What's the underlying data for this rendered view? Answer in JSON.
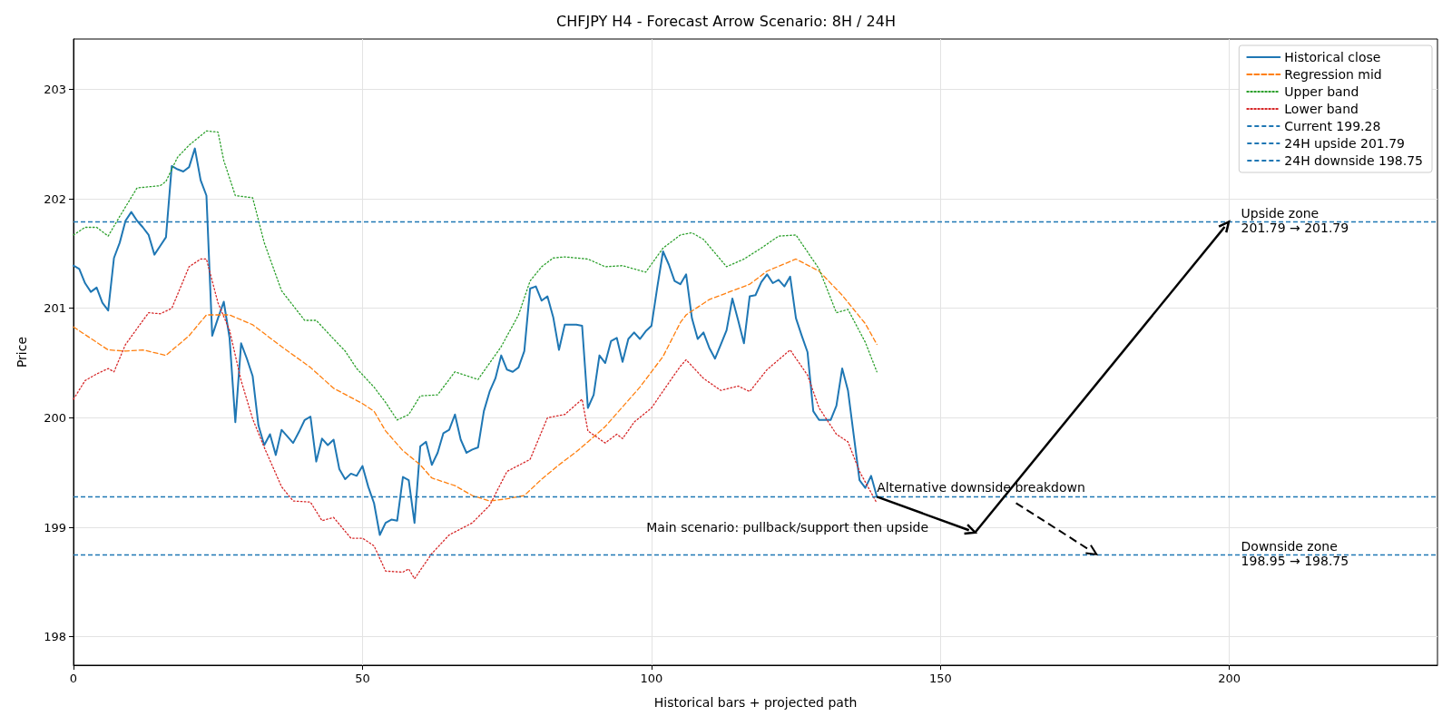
{
  "chart_data": {
    "type": "line",
    "title": "CHFJPY H4 - Forecast Arrow Scenario: 8H / 24H",
    "xlabel": "Historical bars + projected path",
    "ylabel": "Price",
    "xlim": [
      0,
      236
    ],
    "xticks": [
      0,
      50,
      100,
      150,
      200
    ],
    "ylim": [
      197.74,
      203.46
    ],
    "yticks": [
      198,
      199,
      200,
      201,
      202,
      203
    ],
    "grid": true,
    "legend": "top right",
    "marker": "none",
    "x": [
      0,
      1,
      2,
      3,
      4,
      5,
      6,
      7,
      8,
      9,
      10,
      11,
      12,
      13,
      14,
      15,
      16,
      17,
      18,
      19,
      20,
      21,
      22,
      23,
      24,
      25,
      26,
      27,
      28,
      29,
      30,
      31,
      32,
      33,
      34,
      35,
      36,
      37,
      38,
      39,
      40,
      41,
      42,
      43,
      44,
      45,
      46,
      47,
      48,
      49,
      50,
      51,
      52,
      53,
      54,
      55,
      56,
      57,
      58,
      59,
      60,
      61,
      62,
      63,
      64,
      65,
      66,
      67,
      68,
      69,
      70,
      71,
      72,
      73,
      74,
      75,
      76,
      77,
      78,
      79,
      80,
      81,
      82,
      83,
      84,
      85,
      86,
      87,
      88,
      89,
      90,
      91,
      92,
      93,
      94,
      95,
      96,
      97,
      98,
      99,
      100,
      101,
      102,
      103,
      104,
      105,
      106,
      107,
      108,
      109,
      110,
      111,
      112,
      113,
      114,
      115,
      116,
      117,
      118,
      119,
      120,
      121,
      122,
      123,
      124,
      125,
      126,
      127,
      128,
      129,
      130,
      131,
      132,
      133,
      134,
      135,
      136,
      137,
      138,
      139
    ],
    "series": [
      {
        "name": "Historical close",
        "color": "#1f77b4",
        "line_style": "solid",
        "values": [
          201.39,
          201.36,
          201.23,
          201.15,
          201.19,
          201.05,
          200.98,
          201.46,
          201.6,
          201.8,
          201.88,
          201.8,
          201.74,
          201.67,
          201.49,
          201.57,
          201.65,
          202.3,
          202.27,
          202.25,
          202.29,
          202.46,
          202.17,
          202.03,
          200.75,
          200.91,
          201.06,
          200.73,
          199.96,
          200.68,
          200.54,
          200.38,
          199.93,
          199.75,
          199.85,
          199.66,
          199.89,
          199.83,
          199.77,
          199.87,
          199.98,
          200.01,
          199.6,
          199.81,
          199.75,
          199.8,
          199.53,
          199.44,
          199.49,
          199.47,
          199.56,
          199.37,
          199.22,
          198.93,
          199.04,
          199.07,
          199.06,
          199.46,
          199.43,
          199.04,
          199.74,
          199.78,
          199.57,
          199.68,
          199.86,
          199.89,
          200.03,
          199.8,
          199.68,
          199.71,
          199.73,
          200.06,
          200.24,
          200.36,
          200.57,
          200.44,
          200.42,
          200.46,
          200.61,
          201.18,
          201.2,
          201.07,
          201.11,
          200.92,
          200.62,
          200.85,
          200.85,
          200.85,
          200.84,
          200.09,
          200.21,
          200.57,
          200.5,
          200.7,
          200.73,
          200.51,
          200.72,
          200.78,
          200.72,
          200.79,
          200.84,
          201.19,
          201.52,
          201.4,
          201.25,
          201.22,
          201.31,
          200.91,
          200.72,
          200.78,
          200.64,
          200.54,
          200.67,
          200.8,
          201.09,
          200.89,
          200.68,
          201.11,
          201.12,
          201.24,
          201.31,
          201.23,
          201.26,
          201.2,
          201.29,
          200.91,
          200.75,
          200.6,
          200.06,
          199.98,
          199.98,
          199.98,
          200.11,
          200.45,
          200.25,
          199.84,
          199.43,
          199.36,
          199.47,
          199.28
        ]
      },
      {
        "name": "Regression mid",
        "color": "#ff7f0e",
        "line_style": "dashed",
        "x": [
          0,
          6,
          9,
          12,
          16,
          20,
          23,
          27,
          31,
          36,
          41,
          45,
          50,
          52,
          54,
          57,
          60,
          62,
          66,
          69,
          72,
          75,
          78,
          81,
          84,
          87,
          89,
          92,
          95,
          98,
          102,
          105,
          106,
          110,
          114,
          117,
          120,
          125,
          129,
          133,
          137,
          139
        ],
        "values": [
          200.83,
          200.62,
          200.61,
          200.62,
          200.57,
          200.75,
          200.94,
          200.94,
          200.85,
          200.65,
          200.46,
          200.27,
          200.13,
          200.06,
          199.88,
          199.7,
          199.57,
          199.45,
          199.38,
          199.29,
          199.24,
          199.26,
          199.29,
          199.44,
          199.57,
          199.69,
          199.78,
          199.92,
          200.1,
          200.28,
          200.56,
          200.87,
          200.94,
          201.08,
          201.16,
          201.22,
          201.34,
          201.45,
          201.34,
          201.12,
          200.86,
          200.67
        ]
      },
      {
        "name": "Upper band",
        "color": "#2ca02c",
        "line_style": "dotted",
        "x": [
          0,
          2,
          4,
          6,
          8,
          11,
          15,
          16,
          18,
          20,
          23,
          25,
          26,
          28,
          31,
          33,
          36,
          40,
          42,
          45,
          47,
          49,
          52,
          54,
          56,
          58,
          60,
          63,
          66,
          70,
          74,
          77,
          79,
          81,
          83,
          85,
          89,
          92,
          95,
          99,
          102,
          105,
          107,
          109,
          113,
          116,
          119,
          122,
          125,
          129,
          132,
          134,
          137,
          139
        ],
        "values": [
          201.67,
          201.74,
          201.74,
          201.66,
          201.84,
          202.1,
          202.12,
          202.16,
          202.38,
          202.49,
          202.62,
          202.61,
          202.35,
          202.03,
          202.01,
          201.6,
          201.16,
          200.89,
          200.89,
          200.72,
          200.61,
          200.45,
          200.28,
          200.14,
          199.98,
          200.03,
          200.2,
          200.21,
          200.42,
          200.35,
          200.65,
          200.94,
          201.25,
          201.38,
          201.46,
          201.47,
          201.45,
          201.38,
          201.39,
          201.33,
          201.55,
          201.67,
          201.69,
          201.63,
          201.38,
          201.45,
          201.55,
          201.66,
          201.67,
          201.36,
          200.96,
          200.99,
          200.69,
          200.42
        ]
      },
      {
        "name": "Lower band",
        "color": "#d62728",
        "line_style": "dotted",
        "x": [
          0,
          2,
          4,
          6,
          7,
          9,
          13,
          15,
          17,
          20,
          22,
          23,
          25,
          27,
          29,
          31,
          33,
          36,
          38,
          41,
          43,
          45,
          48,
          50,
          52,
          54,
          57,
          58,
          59,
          62,
          65,
          69,
          72,
          75,
          79,
          82,
          85,
          88,
          89,
          92,
          94,
          95,
          97,
          100,
          103,
          105,
          106,
          109,
          112,
          115,
          117,
          120,
          124,
          127,
          129,
          132,
          134,
          136,
          139
        ],
        "values": [
          200.17,
          200.34,
          200.4,
          200.45,
          200.42,
          200.67,
          200.96,
          200.95,
          201.0,
          201.38,
          201.45,
          201.45,
          201.05,
          200.8,
          200.34,
          199.99,
          199.73,
          199.37,
          199.24,
          199.23,
          199.06,
          199.09,
          198.9,
          198.9,
          198.83,
          198.6,
          198.59,
          198.62,
          198.53,
          198.76,
          198.93,
          199.04,
          199.2,
          199.51,
          199.62,
          200.0,
          200.03,
          200.17,
          199.88,
          199.77,
          199.85,
          199.81,
          199.96,
          200.09,
          200.32,
          200.47,
          200.53,
          200.36,
          200.25,
          200.29,
          200.24,
          200.44,
          200.62,
          200.39,
          200.09,
          199.85,
          199.78,
          199.51,
          199.22
        ]
      }
    ],
    "ref_lines": [
      {
        "axis": "y",
        "value": 199.28,
        "label": "Current 199.28",
        "color": "#1f77b4",
        "line_style": "dashed"
      },
      {
        "axis": "y",
        "value": 201.79,
        "label": "24H upside 201.79",
        "color": "#1f77b4",
        "line_style": "dashed"
      },
      {
        "axis": "y",
        "value": 198.75,
        "label": "24H downside 198.75",
        "color": "#1f77b4",
        "line_style": "dashed"
      }
    ],
    "annotations": [
      "Main scenario: pullback/support then upside",
      "Alternative downside breakdown",
      "Upside zone\n201.79 → 201.79",
      "Downside zone\n198.95 → 198.75"
    ]
  }
}
